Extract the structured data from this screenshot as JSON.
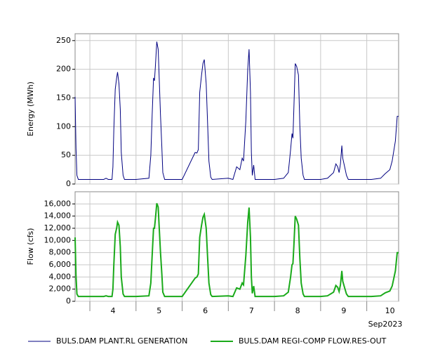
{
  "chart_data": [
    {
      "type": "line",
      "ylabel": "Energy (MWh)",
      "x": [
        3.68,
        3.7,
        3.72,
        3.75,
        4.0,
        4.3,
        4.35,
        4.4,
        4.48,
        4.5,
        4.52,
        4.55,
        4.58,
        4.6,
        4.63,
        4.66,
        4.68,
        4.72,
        4.75,
        5.0,
        5.28,
        5.32,
        5.35,
        5.38,
        5.4,
        5.42,
        5.45,
        5.48,
        5.5,
        5.53,
        5.56,
        5.58,
        5.62,
        6.0,
        6.28,
        6.32,
        6.35,
        6.38,
        6.42,
        6.45,
        6.48,
        6.52,
        6.55,
        6.58,
        6.62,
        6.65,
        7.0,
        7.1,
        7.18,
        7.25,
        7.3,
        7.33,
        7.38,
        7.42,
        7.45,
        7.48,
        7.5,
        7.52,
        7.55,
        7.58,
        8.0,
        8.2,
        8.3,
        8.35,
        8.38,
        8.4,
        8.42,
        8.45,
        8.48,
        8.52,
        8.55,
        8.58,
        8.62,
        8.65,
        9.0,
        9.15,
        9.28,
        9.33,
        9.37,
        9.4,
        9.43,
        9.46,
        9.48,
        9.52,
        9.56,
        9.6,
        10.0,
        10.1,
        10.3,
        10.4,
        10.5,
        10.55,
        10.62,
        10.66,
        10.69
      ],
      "series": [
        {
          "name": "BULS.DAM PLANT.RL GENERATION",
          "color": "#000080",
          "values": [
            152,
            62,
            15,
            8,
            8,
            8,
            10,
            8,
            8,
            30,
            95,
            165,
            185,
            195,
            175,
            130,
            55,
            15,
            8,
            8,
            10,
            50,
            120,
            185,
            180,
            205,
            248,
            235,
            190,
            120,
            65,
            20,
            8,
            8,
            55,
            54,
            60,
            160,
            190,
            210,
            217,
            175,
            110,
            40,
            12,
            8,
            10,
            8,
            30,
            25,
            45,
            40,
            110,
            200,
            235,
            160,
            55,
            15,
            33,
            8,
            8,
            10,
            20,
            60,
            88,
            80,
            130,
            210,
            205,
            190,
            100,
            45,
            15,
            8,
            8,
            10,
            20,
            35,
            30,
            20,
            35,
            67,
            45,
            30,
            15,
            8,
            8,
            8,
            10,
            18,
            25,
            40,
            75,
            118,
            118
          ]
        }
      ],
      "xlim": [
        3.68,
        10.69
      ],
      "ylim": [
        0,
        262
      ],
      "yticks": [
        0,
        50,
        100,
        150,
        200,
        250
      ],
      "grid": true
    },
    {
      "type": "line",
      "ylabel": "Flow (cfs)",
      "xlabel": "Sep2023",
      "x": [
        3.68,
        3.7,
        3.72,
        3.75,
        4.0,
        4.3,
        4.35,
        4.4,
        4.48,
        4.5,
        4.52,
        4.55,
        4.58,
        4.6,
        4.63,
        4.66,
        4.68,
        4.72,
        4.75,
        5.0,
        5.28,
        5.32,
        5.35,
        5.38,
        5.4,
        5.42,
        5.45,
        5.48,
        5.5,
        5.53,
        5.56,
        5.58,
        5.62,
        6.0,
        6.28,
        6.32,
        6.35,
        6.38,
        6.42,
        6.45,
        6.48,
        6.52,
        6.55,
        6.58,
        6.62,
        6.65,
        7.0,
        7.1,
        7.18,
        7.25,
        7.3,
        7.33,
        7.38,
        7.42,
        7.45,
        7.48,
        7.5,
        7.52,
        7.55,
        7.58,
        8.0,
        8.2,
        8.3,
        8.35,
        8.38,
        8.4,
        8.42,
        8.45,
        8.48,
        8.52,
        8.55,
        8.58,
        8.62,
        8.65,
        9.0,
        9.15,
        9.28,
        9.33,
        9.37,
        9.4,
        9.43,
        9.46,
        9.48,
        9.52,
        9.56,
        9.6,
        10.0,
        10.1,
        10.3,
        10.4,
        10.5,
        10.55,
        10.62,
        10.66,
        10.69
      ],
      "series": [
        {
          "name": "BULS.DAM REGI-COMP FLOW.RES-OUT",
          "color": "#1aaa1a",
          "values": [
            10500,
            4200,
            1200,
            800,
            800,
            800,
            900,
            800,
            800,
            2000,
            6000,
            11000,
            12000,
            13000,
            12500,
            9000,
            4000,
            1200,
            800,
            800,
            900,
            3000,
            7500,
            12000,
            12000,
            13500,
            16100,
            15500,
            12500,
            8000,
            4500,
            1500,
            800,
            800,
            3800,
            4000,
            4500,
            10500,
            12500,
            13800,
            14300,
            12000,
            7500,
            3000,
            1100,
            800,
            900,
            800,
            2200,
            2000,
            3000,
            2700,
            7500,
            13000,
            15400,
            10500,
            4000,
            1300,
            2500,
            800,
            800,
            900,
            1500,
            4000,
            6000,
            6200,
            9000,
            14000,
            13500,
            12500,
            7000,
            3000,
            1200,
            800,
            800,
            900,
            1500,
            2600,
            2300,
            1600,
            2700,
            5000,
            3300,
            2200,
            1200,
            800,
            800,
            800,
            900,
            1400,
            1700,
            2500,
            5000,
            8000,
            8000
          ]
        }
      ],
      "xlim": [
        3.68,
        10.69
      ],
      "xticks": [
        {
          "value": 4,
          "label": "4"
        },
        {
          "value": 5,
          "label": "5"
        },
        {
          "value": 6,
          "label": "6"
        },
        {
          "value": 7,
          "label": "7"
        },
        {
          "value": 8,
          "label": "8"
        },
        {
          "value": 9,
          "label": "9"
        },
        {
          "value": 10,
          "label": "10"
        }
      ],
      "ylim": [
        0,
        18000
      ],
      "yticks": [
        0,
        {
          "value": 2000,
          "label": "2,000"
        },
        {
          "value": 4000,
          "label": "4,000"
        },
        {
          "value": 6000,
          "label": "6,000"
        },
        {
          "value": 8000,
          "label": "8,000"
        },
        {
          "value": 10000,
          "label": "10,000"
        },
        {
          "value": 12000,
          "label": "12,000"
        },
        {
          "value": 14000,
          "label": "14,000"
        },
        {
          "value": 16000,
          "label": "16,000"
        }
      ],
      "grid": true
    }
  ]
}
